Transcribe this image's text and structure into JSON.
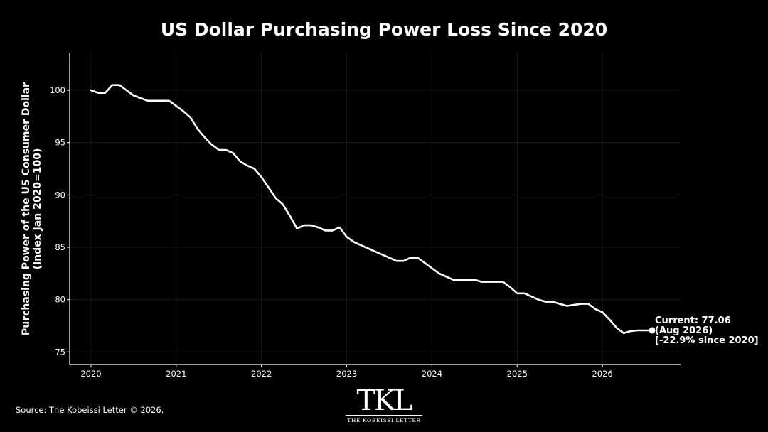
{
  "chart_data": {
    "type": "line",
    "title": "US Dollar Purchasing Power Loss Since 2020",
    "ylabel": [
      "Purchasing Power of the US Consumer Dollar",
      "(Index Jan 2020=100)"
    ],
    "xlabel": "",
    "x_ticks": [
      "2020",
      "2021",
      "2022",
      "2023",
      "2024",
      "2025",
      "2026"
    ],
    "y_ticks": [
      75,
      80,
      85,
      90,
      95,
      100
    ],
    "xlim": [
      "2019-10",
      "2026-12"
    ],
    "ylim": [
      73.8,
      103.6
    ],
    "grid": true,
    "series": [
      {
        "color": "#ffffff",
        "x": [
          "2020-01",
          "2020-02",
          "2020-03",
          "2020-04",
          "2020-05",
          "2020-06",
          "2020-07",
          "2020-08",
          "2020-09",
          "2020-10",
          "2020-11",
          "2020-12",
          "2021-01",
          "2021-02",
          "2021-03",
          "2021-04",
          "2021-05",
          "2021-06",
          "2021-07",
          "2021-08",
          "2021-09",
          "2021-10",
          "2021-11",
          "2021-12",
          "2022-01",
          "2022-02",
          "2022-03",
          "2022-04",
          "2022-05",
          "2022-06",
          "2022-07",
          "2022-08",
          "2022-09",
          "2022-10",
          "2022-11",
          "2022-12",
          "2023-01",
          "2023-02",
          "2023-03",
          "2023-04",
          "2023-05",
          "2023-06",
          "2023-07",
          "2023-08",
          "2023-09",
          "2023-10",
          "2023-11",
          "2023-12",
          "2024-01",
          "2024-02",
          "2024-03",
          "2024-04",
          "2024-05",
          "2024-06",
          "2024-07",
          "2024-08",
          "2024-09",
          "2024-10",
          "2024-11",
          "2024-12",
          "2025-01",
          "2025-02",
          "2025-03",
          "2025-04",
          "2025-05",
          "2025-06",
          "2025-07",
          "2025-08",
          "2025-09",
          "2025-10",
          "2025-11",
          "2025-12",
          "2026-01",
          "2026-02",
          "2026-03",
          "2026-04",
          "2026-05",
          "2026-06",
          "2026-07",
          "2026-08"
        ],
        "values": [
          100.0,
          99.75,
          99.75,
          100.5,
          100.5,
          100.0,
          99.5,
          99.25,
          99.0,
          99.0,
          99.0,
          99.0,
          98.5,
          98.0,
          97.4,
          96.3,
          95.5,
          94.8,
          94.3,
          94.3,
          94.0,
          93.2,
          92.8,
          92.5,
          91.7,
          90.7,
          89.7,
          89.1,
          88.0,
          86.8,
          87.1,
          87.1,
          86.9,
          86.6,
          86.6,
          86.9,
          86.0,
          85.5,
          85.2,
          84.9,
          84.6,
          84.3,
          84.0,
          83.7,
          83.7,
          84.0,
          84.0,
          83.5,
          83.0,
          82.5,
          82.2,
          81.9,
          81.9,
          81.9,
          81.9,
          81.7,
          81.7,
          81.7,
          81.7,
          81.2,
          80.6,
          80.6,
          80.3,
          80.0,
          79.8,
          79.8,
          79.6,
          79.4,
          79.5,
          79.6,
          79.6,
          79.1,
          78.8,
          78.1,
          77.3,
          76.8,
          77.0,
          77.06,
          77.06,
          77.06
        ]
      }
    ],
    "annotation": {
      "lines": [
        "Current: 77.06",
        "(Aug 2026)",
        "[-22.9% since 2020]"
      ],
      "x": "2026-08",
      "y": 77.06
    }
  },
  "footer": {
    "source": "Source: The Kobeissi Letter © 2026.",
    "logo_mark": "TKL",
    "logo_text": "THE KOBEISSI LETTER"
  }
}
